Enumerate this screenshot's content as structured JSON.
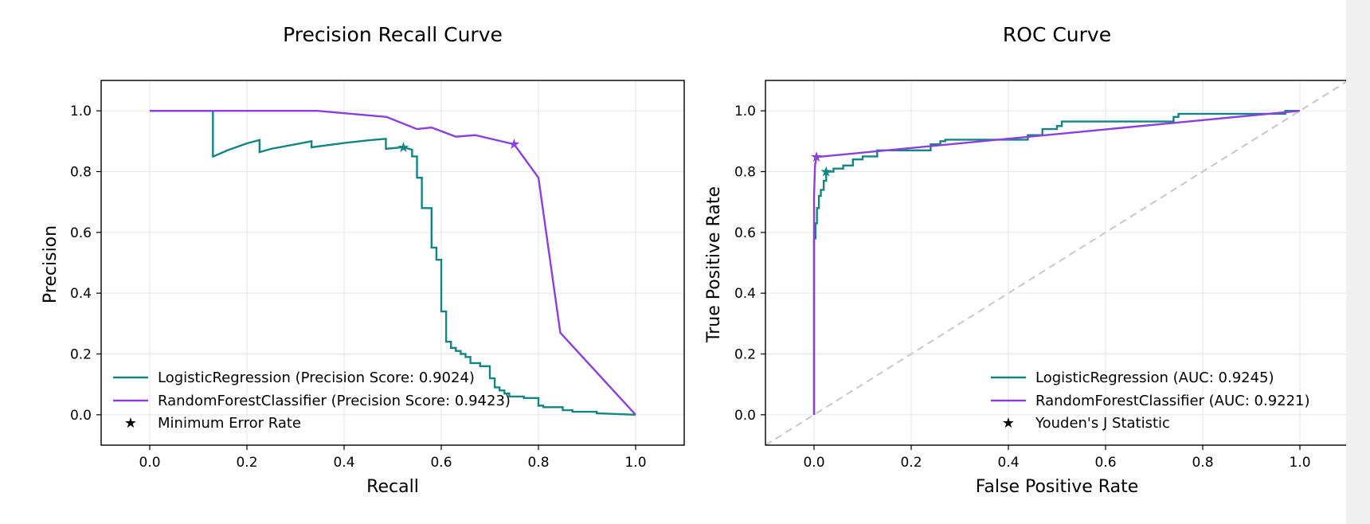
{
  "colors": {
    "logistic": "#148585",
    "forest": "#8c3fdc",
    "diagonal": "#cccccc",
    "marker": "#000000"
  },
  "chart_data": [
    {
      "type": "line",
      "title": "Precision Recall Curve",
      "xlabel": "Recall",
      "ylabel": "Precision",
      "xlim": [
        -0.1,
        1.1
      ],
      "ylim": [
        -0.1,
        1.1
      ],
      "xticks": [
        "0.0",
        "0.2",
        "0.4",
        "0.6",
        "0.8",
        "1.0"
      ],
      "yticks": [
        "0.0",
        "0.2",
        "0.4",
        "0.6",
        "0.8",
        "1.0"
      ],
      "grid": true,
      "legend_position": "lower-left",
      "series": [
        {
          "name": "LogisticRegression (Precision Score: 0.9024)",
          "color_key": "logistic",
          "x": [
            0.0,
            0.13,
            0.13,
            0.131,
            0.16,
            0.2,
            0.226,
            0.226,
            0.25,
            0.3,
            0.333,
            0.333,
            0.4,
            0.45,
            0.486,
            0.486,
            0.52,
            0.522,
            0.54,
            0.54,
            0.55,
            0.55,
            0.56,
            0.56,
            0.58,
            0.58,
            0.59,
            0.59,
            0.6,
            0.6,
            0.61,
            0.61,
            0.62,
            0.62,
            0.63,
            0.63,
            0.64,
            0.64,
            0.65,
            0.65,
            0.66,
            0.66,
            0.68,
            0.68,
            0.7,
            0.7,
            0.71,
            0.71,
            0.72,
            0.72,
            0.73,
            0.73,
            0.74,
            0.74,
            0.77,
            0.77,
            0.8,
            0.8,
            0.81,
            0.81,
            0.85,
            0.85,
            0.87,
            0.87,
            0.92,
            0.92,
            1.0
          ],
          "y": [
            1.0,
            1.0,
            0.85,
            0.85,
            0.87,
            0.893,
            0.904,
            0.864,
            0.875,
            0.89,
            0.9,
            0.88,
            0.894,
            0.903,
            0.908,
            0.875,
            0.88,
            0.88,
            0.872,
            0.85,
            0.85,
            0.78,
            0.78,
            0.68,
            0.68,
            0.55,
            0.55,
            0.51,
            0.51,
            0.34,
            0.34,
            0.24,
            0.24,
            0.22,
            0.22,
            0.21,
            0.21,
            0.2,
            0.2,
            0.19,
            0.19,
            0.17,
            0.17,
            0.16,
            0.16,
            0.12,
            0.12,
            0.09,
            0.09,
            0.08,
            0.08,
            0.07,
            0.07,
            0.06,
            0.06,
            0.055,
            0.055,
            0.03,
            0.03,
            0.025,
            0.025,
            0.015,
            0.015,
            0.01,
            0.01,
            0.005,
            0.0
          ],
          "marker": {
            "x": 0.522,
            "y": 0.88
          }
        },
        {
          "name": "RandomForestClassifier (Precision Score: 0.9423)",
          "color_key": "forest",
          "x": [
            0.0,
            0.345,
            0.487,
            0.55,
            0.58,
            0.63,
            0.67,
            0.75,
            0.8,
            0.845,
            1.0
          ],
          "y": [
            1.0,
            1.0,
            0.98,
            0.94,
            0.945,
            0.915,
            0.92,
            0.89,
            0.78,
            0.27,
            0.0
          ],
          "marker": {
            "x": 0.75,
            "y": 0.89
          }
        }
      ],
      "marker_legend": "Minimum Error Rate"
    },
    {
      "type": "line",
      "title": "ROC Curve",
      "xlabel": "False Positive Rate",
      "ylabel": "True Positive Rate",
      "xlim": [
        -0.1,
        1.1
      ],
      "ylim": [
        -0.1,
        1.1
      ],
      "xticks": [
        "0.0",
        "0.2",
        "0.4",
        "0.6",
        "0.8",
        "1.0"
      ],
      "yticks": [
        "0.0",
        "0.2",
        "0.4",
        "0.6",
        "0.8",
        "1.0"
      ],
      "grid": true,
      "legend_position": "lower-right",
      "series": [
        {
          "name": "LogisticRegression (AUC: 0.9245)",
          "color_key": "logistic",
          "x": [
            0.0,
            0.0,
            0.003,
            0.003,
            0.006,
            0.006,
            0.01,
            0.01,
            0.014,
            0.014,
            0.02,
            0.02,
            0.025,
            0.025,
            0.04,
            0.04,
            0.06,
            0.06,
            0.08,
            0.08,
            0.1,
            0.1,
            0.13,
            0.13,
            0.24,
            0.24,
            0.26,
            0.26,
            0.27,
            0.27,
            0.44,
            0.44,
            0.47,
            0.47,
            0.5,
            0.5,
            0.51,
            0.51,
            0.74,
            0.74,
            0.75,
            0.75,
            0.97,
            0.97,
            1.0
          ],
          "y": [
            0.0,
            0.58,
            0.58,
            0.63,
            0.63,
            0.68,
            0.68,
            0.72,
            0.72,
            0.74,
            0.74,
            0.77,
            0.77,
            0.8,
            0.8,
            0.81,
            0.81,
            0.82,
            0.82,
            0.84,
            0.84,
            0.85,
            0.85,
            0.87,
            0.87,
            0.89,
            0.89,
            0.9,
            0.9,
            0.905,
            0.905,
            0.92,
            0.92,
            0.94,
            0.94,
            0.95,
            0.95,
            0.965,
            0.965,
            0.98,
            0.98,
            0.99,
            0.99,
            1.0,
            1.0
          ],
          "marker": {
            "x": 0.025,
            "y": 0.8
          }
        },
        {
          "name": "RandomForestClassifier (AUC: 0.9221)",
          "color_key": "forest",
          "x": [
            0.0,
            0.0,
            0.002,
            0.005,
            1.0
          ],
          "y": [
            0.0,
            0.72,
            0.82,
            0.848,
            1.0
          ],
          "marker": {
            "x": 0.005,
            "y": 0.848
          }
        }
      ],
      "diagonal": true,
      "marker_legend": "Youden's J Statistic"
    }
  ]
}
